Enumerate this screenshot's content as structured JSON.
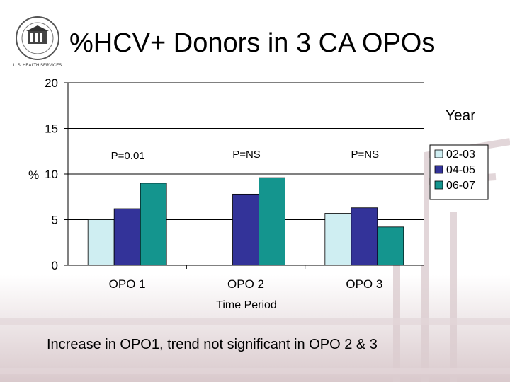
{
  "title": "%HCV+ Donors in 3 CA OPOs",
  "logo": {
    "name": "national-institutes-seal",
    "text": "U.S. HEALTH SERVICES"
  },
  "caption": "Increase in OPO1, trend not significant in OPO 2 & 3",
  "colors": {
    "series_02_03": "#cfeef2",
    "series_04_05": "#333399",
    "series_06_07": "#14958e",
    "background_arch": "#d8c8cb",
    "accent_red": "#b88a90"
  },
  "chart_data": {
    "type": "bar",
    "title": "",
    "xlabel": "Time Period",
    "ylabel": "%",
    "ylim": [
      0,
      20
    ],
    "yticks": [
      "0",
      "5",
      "10",
      "15",
      "20"
    ],
    "categories": [
      "OPO 1",
      "OPO 2",
      "OPO 3"
    ],
    "series": [
      {
        "name": "02-03",
        "values": [
          5,
          0,
          5.7
        ]
      },
      {
        "name": "04-05",
        "values": [
          6.2,
          7.8,
          6.3
        ]
      },
      {
        "name": "06-07",
        "values": [
          9,
          9.6,
          4.2
        ]
      }
    ],
    "legend_title": "Year",
    "legend_position": "right",
    "annotations": [
      "P=0.01",
      "P=NS",
      "P=NS"
    ],
    "grid": true
  }
}
